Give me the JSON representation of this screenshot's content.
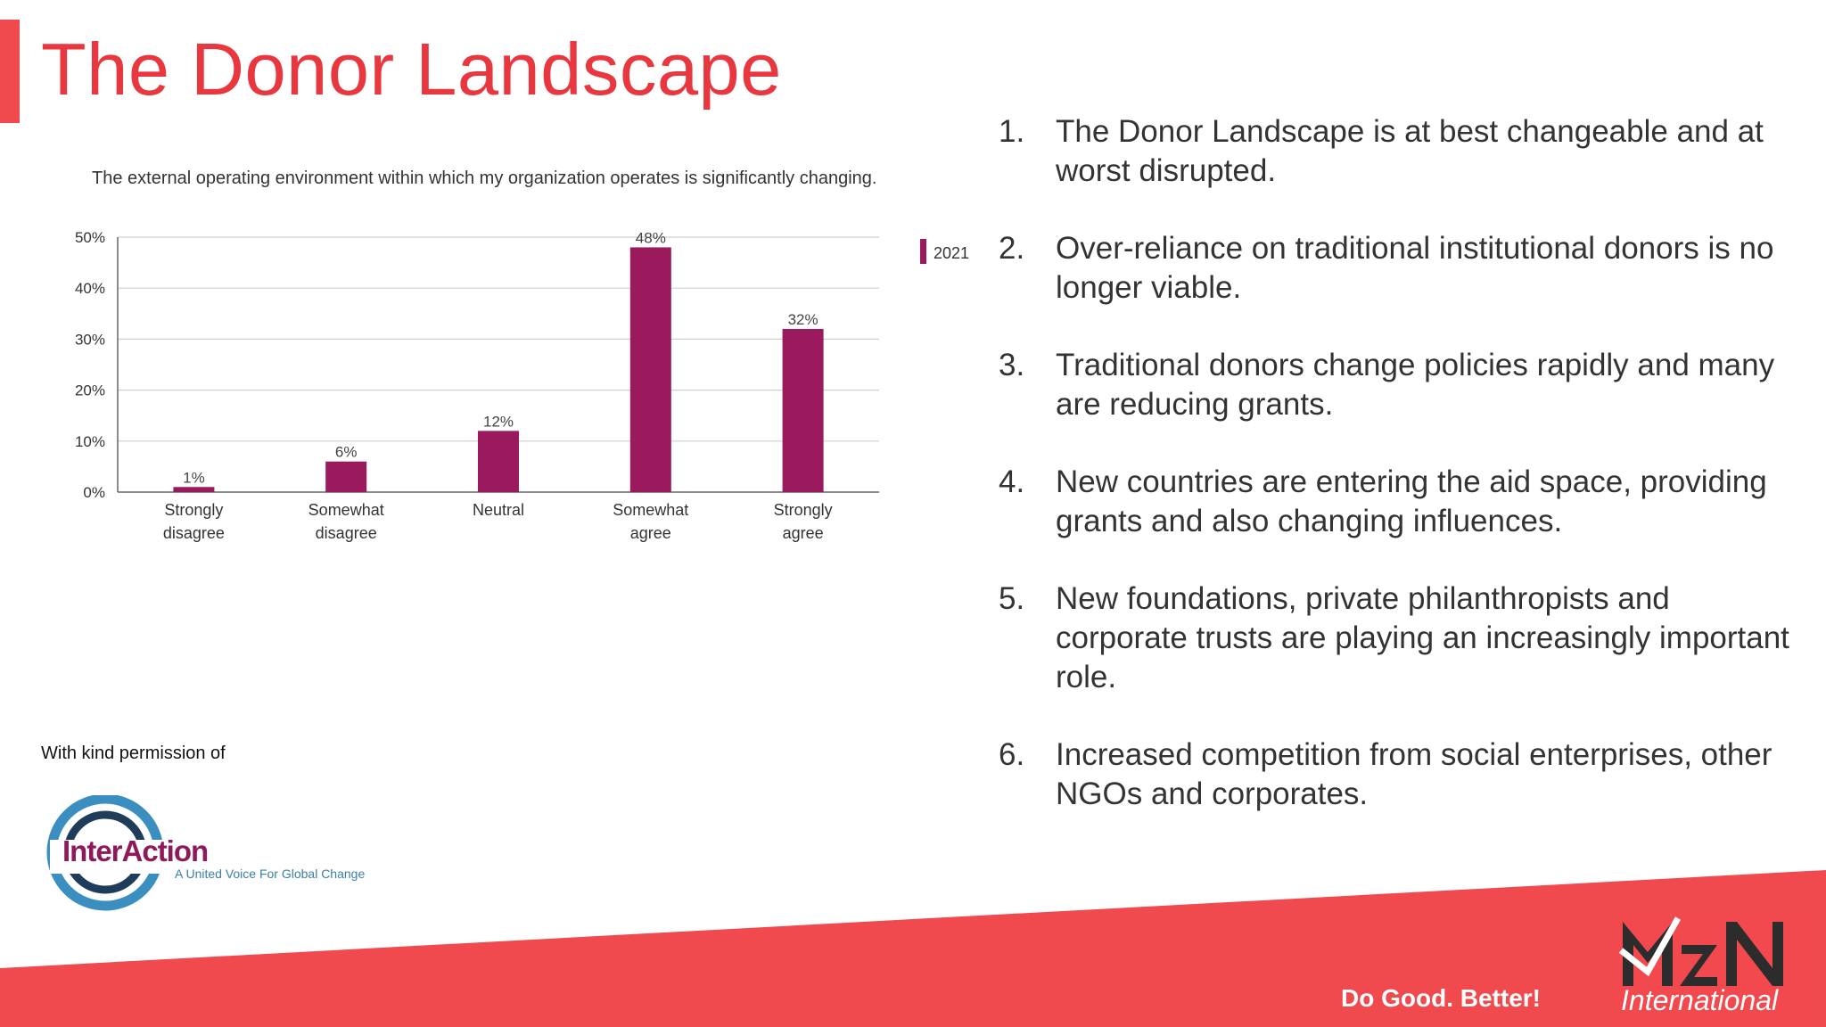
{
  "slide": {
    "title": "The Donor Landscape",
    "credit": "With kind permission of",
    "logo": {
      "name": "InterAction",
      "tagline": "A United Voice For Global Change"
    },
    "points": [
      {
        "num": "1.",
        "text": "The Donor Landscape is at best changeable and at worst disrupted."
      },
      {
        "num": "2.",
        "text": "Over-reliance on traditional institutional donors is no longer viable."
      },
      {
        "num": "3.",
        "text": "Traditional donors change policies rapidly and many are reducing grants."
      },
      {
        "num": "4.",
        "text": "New countries are entering the aid space, providing grants and also changing influences."
      },
      {
        "num": "5.",
        "text": "New foundations, private philanthropists and corporate trusts are playing an increasingly important role."
      },
      {
        "num": "6.",
        "text": "Increased competition from social enterprises, other NGOs and corporates."
      }
    ],
    "footer": {
      "slogan": "Do Good. Better!",
      "brand_sub": "International"
    }
  },
  "colors": {
    "title": "#e8373f",
    "accent": "#f04a4f",
    "bar": "#9b1a5e",
    "footer": "#f04a4f"
  },
  "chart_data": {
    "type": "bar",
    "title": "The external operating environment within which my organization operates is significantly changing.",
    "categories": [
      [
        "Strongly",
        "disagree"
      ],
      [
        "Somewhat",
        "disagree"
      ],
      [
        "Neutral"
      ],
      [
        "Somewhat",
        "agree"
      ],
      [
        "Strongly",
        "agree"
      ]
    ],
    "series": [
      {
        "name": "2021",
        "values": [
          1,
          6,
          12,
          48,
          32
        ]
      }
    ],
    "data_labels": [
      "1%",
      "6%",
      "12%",
      "48%",
      "32%"
    ],
    "yticks": [
      "0%",
      "10%",
      "20%",
      "30%",
      "40%",
      "50%"
    ],
    "ylim": [
      0,
      50
    ],
    "grid": true,
    "legend": "right"
  }
}
